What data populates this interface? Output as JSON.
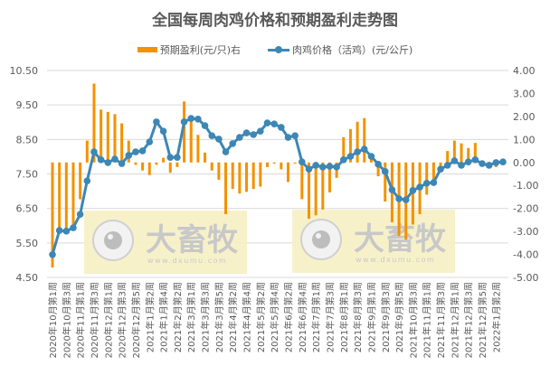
{
  "colors": {
    "bar": "#F39200",
    "line": "#3D87B5",
    "grid": "#D9D9D9",
    "watermark_bg": "#F6F0C4",
    "watermark_fg": "#C8C8C8"
  },
  "watermark": {
    "brand": "大畜牧",
    "url": "www.dxumu.com"
  },
  "chart_data": {
    "type": "bar+line",
    "title": "全国每周肉鸡价格和预期盈利走势图",
    "legend": [
      "预期盈利(元/只)右",
      "肉鸡价格（活鸡）(元/公斤)"
    ],
    "legend_position": "top",
    "grid": true,
    "xlabel": "",
    "ylabel_left": "肉鸡价格（活鸡）(元/公斤)",
    "ylabel_right": "预期盈利(元/只)",
    "ylim_left": [
      4.5,
      10.5
    ],
    "ylim_right": [
      -5,
      4
    ],
    "yticks_left": [
      "10.50",
      "9.50",
      "8.50",
      "7.50",
      "6.50",
      "5.50",
      "4.50"
    ],
    "yticks_right": [
      "4.00",
      "3.00",
      "2.00",
      "1.00",
      "0.00",
      "-1.00",
      "-2.00",
      "-3.00",
      "-4.00",
      "-5.00"
    ],
    "tick_labels": [
      "2020年10月第1周",
      "2020年10月第3周",
      "2020年11月第1周",
      "2020年11月第3周",
      "2020年12月第1周",
      "2020年12月第3周",
      "2020年12月第5周",
      "2021年1月第2周",
      "2021年1月第4周",
      "2021年2月第2周",
      "2021年3月第1周",
      "2021年3月第3周",
      "2021年3月第5周",
      "2021年4月第2周",
      "2021年4月第4周",
      "2021年5月第2周",
      "2021年5月第4周",
      "2021年6月第2周",
      "2021年6月第4周",
      "2021年7月第1周",
      "2021年7月第3周",
      "2021年8月第1周",
      "2021年8月第3周",
      "2021年9月第1周",
      "2021年9月第3周",
      "2021年9月第5周",
      "2021年10月第3周",
      "2021年11月第1周",
      "2021年11月第3周",
      "2021年12月第1周",
      "2021年12月第3周",
      "2021年12月第5周",
      "2022年1月第2周"
    ],
    "series": [
      {
        "name": "预期盈利(元/只)右",
        "type": "bar",
        "axis": "right",
        "values": [
          -4.57,
          -2.9,
          -2.9,
          -2.9,
          -1.6,
          0.95,
          3.43,
          2.3,
          2.2,
          2.1,
          1.7,
          0.95,
          -0.1,
          -0.35,
          -0.55,
          -0.1,
          0.2,
          -0.45,
          -0.2,
          2.65,
          1.8,
          1.2,
          0.43,
          -0.35,
          -0.75,
          -2.25,
          -1.15,
          -1.35,
          -1.28,
          -1.15,
          -1.05,
          -0.2,
          -0.05,
          -0.3,
          -0.85,
          -0.05,
          -1.6,
          -2.45,
          -2.3,
          -2.05,
          -1.3,
          -0.67,
          1.1,
          1.45,
          1.77,
          1.93,
          0.2,
          -0.6,
          -1.7,
          -2.6,
          -3.2,
          -3.35,
          -2.7,
          -2.25,
          -1.4,
          -0.75,
          -0.25,
          0.5,
          0.95,
          0.83,
          0.63,
          0.85,
          0.05,
          0.02,
          -0.2,
          0.02
        ]
      },
      {
        "name": "肉鸡价格（活鸡）(元/公斤)",
        "type": "line",
        "axis": "left",
        "values": [
          5.16,
          5.86,
          5.84,
          5.94,
          6.33,
          7.3,
          8.14,
          7.91,
          7.83,
          7.93,
          7.8,
          8.04,
          8.14,
          8.17,
          8.43,
          9.01,
          8.74,
          7.98,
          7.98,
          9.01,
          9.11,
          9.09,
          8.9,
          8.61,
          8.51,
          8.14,
          8.38,
          8.56,
          8.69,
          8.64,
          8.74,
          8.98,
          8.95,
          8.85,
          8.56,
          8.61,
          7.85,
          7.64,
          7.75,
          7.7,
          7.72,
          7.7,
          7.91,
          8.01,
          8.14,
          8.22,
          8.01,
          7.78,
          7.57,
          7.04,
          6.78,
          6.75,
          7.02,
          7.12,
          7.23,
          7.25,
          7.64,
          7.75,
          7.88,
          7.75,
          7.85,
          7.91,
          7.8,
          7.75,
          7.83,
          7.85
        ]
      }
    ]
  }
}
